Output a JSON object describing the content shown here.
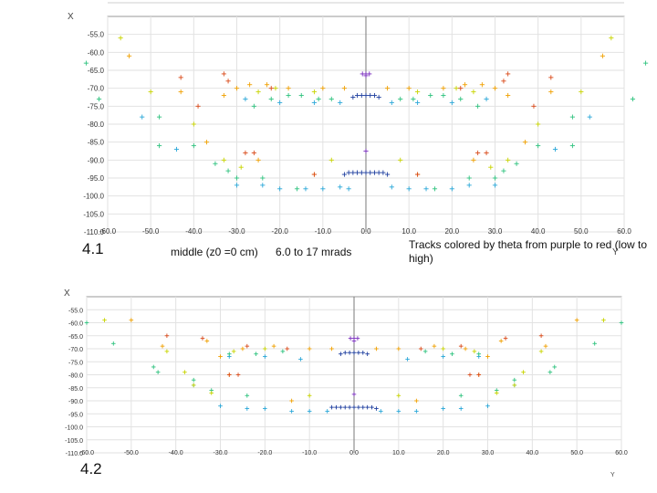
{
  "annotations": {
    "label_4_1": "4.1",
    "label_4_2": "4.2",
    "condition": "middle (z0 =0 cm)",
    "range": "6.0 to 17 mrads",
    "color_note": "Tracks colored by theta from purple to red (low to high)"
  },
  "chart_data": [
    {
      "type": "scatter",
      "title": "",
      "xlabel": "Y",
      "ylabel": "X",
      "xlim": [
        -60,
        60
      ],
      "ylim": [
        -110,
        -50
      ],
      "x_ticks": [
        "-60.0",
        "-50.0",
        "-40.0",
        "-30.0",
        "-20.0",
        "-10.0",
        "0.0",
        "10.0",
        "20.0",
        "30.0",
        "40.0",
        "50.0",
        "60.0"
      ],
      "y_ticks": [
        "-55.0",
        "-60.0",
        "-65.0",
        "-70.0",
        "-75.0",
        "-80.0",
        "-85.0",
        "-90.0",
        "-95.0",
        "-100.0",
        "-105.0",
        "-110.0"
      ],
      "grid": true,
      "colors": [
        "#7b2fbf",
        "#1f3f9f",
        "#2aa7d8",
        "#2ec27e",
        "#c8d400",
        "#f0a000",
        "#d94a1a"
      ],
      "series": [
        {
          "color": "#7b2fbf",
          "marker": "+",
          "x": [
            -0.8,
            0,
            0.8,
            0,
            0
          ],
          "y": [
            -66,
            -66,
            -66,
            -66.5,
            -87.5
          ]
        },
        {
          "color": "#1f3f9f",
          "marker": "+",
          "x": [
            -3,
            -2,
            -1,
            0,
            1,
            2,
            3,
            -5,
            -4,
            -3,
            -2,
            -1,
            0,
            1,
            2,
            3,
            4,
            5
          ],
          "y": [
            -72.5,
            -72,
            -72,
            -72,
            -72,
            -72,
            -72.5,
            -94,
            -93.5,
            -93.5,
            -93.5,
            -93.5,
            -93.5,
            -93.5,
            -93.5,
            -93.5,
            -93.5,
            -94
          ]
        },
        {
          "color": "#2aa7d8",
          "marker": "+",
          "x": [
            -52,
            -30,
            -24,
            -20,
            -14,
            -10,
            -6,
            -4,
            6,
            10,
            14,
            20,
            24,
            30,
            52,
            -28,
            -20,
            -12,
            -6,
            6,
            12,
            20,
            28,
            -44,
            44
          ],
          "y": [
            -78,
            -97,
            -97,
            -98,
            -98,
            -98,
            -97.5,
            -98,
            -97.5,
            -98,
            -98,
            -98,
            -97,
            -97,
            -78,
            -73,
            -74,
            -74,
            -74,
            -74,
            -74,
            -74,
            -73,
            -87,
            -87
          ]
        },
        {
          "color": "#2ec27e",
          "marker": "+",
          "x": [
            -65,
            -48,
            -40,
            -32,
            -26,
            -22,
            -18,
            -15,
            -11,
            -8,
            8,
            11,
            15,
            18,
            22,
            26,
            32,
            40,
            48,
            65,
            -48,
            -35,
            -30,
            -24,
            -16,
            16,
            24,
            30,
            35,
            48,
            -62,
            62
          ],
          "y": [
            -63,
            -78,
            -86,
            -93,
            -75,
            -73,
            -72,
            -72,
            -73,
            -73,
            -73,
            -73,
            -72,
            -72,
            -73,
            -75,
            -93,
            -86,
            -78,
            -63,
            -86,
            -91,
            -95,
            -95,
            -98,
            -98,
            -95,
            -95,
            -91,
            -86,
            -73,
            -73
          ]
        },
        {
          "color": "#c8d400",
          "marker": "+",
          "x": [
            -57,
            -50,
            -33,
            -29,
            -25,
            -21,
            -12,
            12,
            21,
            25,
            29,
            33,
            50,
            57,
            -40,
            40,
            -8,
            8
          ],
          "y": [
            -56,
            -71,
            -90,
            -92,
            -71,
            -70,
            -71,
            -71,
            -70,
            -71,
            -92,
            -90,
            -71,
            -56,
            -80,
            -80,
            -90,
            -90
          ]
        },
        {
          "color": "#f0a000",
          "marker": "+",
          "x": [
            -55,
            -43,
            -37,
            -33,
            -30,
            -27,
            -23,
            -18,
            -10,
            -5,
            5,
            10,
            18,
            23,
            27,
            30,
            33,
            37,
            43,
            55,
            -25,
            25,
            -12,
            12
          ],
          "y": [
            -61,
            -71,
            -85,
            -72,
            -70,
            -69,
            -69,
            -70,
            -70,
            -70,
            -70,
            -70,
            -70,
            -69,
            -69,
            -70,
            -72,
            -85,
            -71,
            -61,
            -90,
            -90,
            -94,
            -94
          ]
        },
        {
          "color": "#d94a1a",
          "marker": "+",
          "x": [
            -43,
            -39,
            -33,
            -32,
            -28,
            -22,
            22,
            28,
            32,
            33,
            39,
            43,
            -26,
            26,
            -12,
            12
          ],
          "y": [
            -67,
            -75,
            -66,
            -68,
            -88,
            -70,
            -70,
            -88,
            -68,
            -66,
            -75,
            -67,
            -88,
            -88,
            -94,
            -94
          ]
        }
      ]
    },
    {
      "type": "scatter",
      "title": "",
      "xlabel": "Y",
      "ylabel": "X",
      "xlim": [
        -60,
        60
      ],
      "ylim": [
        -110,
        -50
      ],
      "x_ticks": [
        "-60.0",
        "-50.0",
        "-40.0",
        "-30.0",
        "-20.0",
        "-10.0",
        "0.0",
        "10.0",
        "20.0",
        "30.0",
        "40.0",
        "50.0",
        "60.0"
      ],
      "y_ticks": [
        "-55.0",
        "-60.0",
        "-65.0",
        "-70.0",
        "-75.0",
        "-80.0",
        "-85.0",
        "-90.0",
        "-95.0",
        "-100.0",
        "-105.0",
        "-110.0"
      ],
      "grid": true,
      "colors": [
        "#7b2fbf",
        "#1f3f9f",
        "#2aa7d8",
        "#2ec27e",
        "#c8d400",
        "#f0a000",
        "#d94a1a"
      ],
      "series": [
        {
          "color": "#7b2fbf",
          "marker": "+",
          "x": [
            -0.8,
            0,
            0.8,
            0,
            0
          ],
          "y": [
            -66,
            -66,
            -66,
            -67,
            -87.5
          ]
        },
        {
          "color": "#1f3f9f",
          "marker": "+",
          "x": [
            -3,
            -2,
            -1,
            0,
            1,
            2,
            3,
            -5,
            -4,
            -3,
            -2,
            -1,
            0,
            1,
            2,
            3,
            4,
            5
          ],
          "y": [
            -72,
            -71.5,
            -71.5,
            -71.5,
            -71.5,
            -71.5,
            -72,
            -92.5,
            -92.5,
            -92.5,
            -92.5,
            -92.5,
            -92.5,
            -92.5,
            -92.5,
            -92.5,
            -92.5,
            -93
          ]
        },
        {
          "color": "#2aa7d8",
          "marker": "+",
          "x": [
            -30,
            -24,
            -20,
            -14,
            -10,
            -6,
            6,
            10,
            14,
            20,
            24,
            30,
            -28,
            -20,
            -12,
            12,
            20,
            28,
            -36,
            36
          ],
          "y": [
            -92,
            -93,
            -93,
            -94,
            -94,
            -94,
            -94,
            -94,
            -94,
            -93,
            -93,
            -92,
            -73,
            -73,
            -74,
            -74,
            -73,
            -73,
            -84,
            -84
          ]
        },
        {
          "color": "#2ec27e",
          "marker": "+",
          "x": [
            -60,
            -45,
            -36,
            -28,
            -22,
            -16,
            16,
            22,
            28,
            36,
            45,
            60,
            -44,
            -32,
            -24,
            24,
            32,
            44,
            -54,
            54
          ],
          "y": [
            -60,
            -77,
            -82,
            -72,
            -72,
            -71,
            -71,
            -72,
            -72,
            -82,
            -77,
            -60,
            -79,
            -86,
            -88,
            -88,
            -86,
            -79,
            -68,
            -68
          ]
        },
        {
          "color": "#c8d400",
          "marker": "+",
          "x": [
            -56,
            -42,
            -38,
            -32,
            -27,
            -20,
            20,
            27,
            32,
            38,
            42,
            56,
            -36,
            36,
            -10,
            10
          ],
          "y": [
            -59,
            -71,
            -79,
            -87,
            -71,
            -70,
            -70,
            -71,
            -87,
            -79,
            -71,
            -59,
            -84,
            -84,
            -88,
            -88
          ]
        },
        {
          "color": "#f0a000",
          "marker": "+",
          "x": [
            -50,
            -43,
            -33,
            -30,
            -25,
            -18,
            -10,
            -5,
            5,
            10,
            18,
            25,
            30,
            33,
            43,
            50,
            -28,
            28,
            -14,
            14
          ],
          "y": [
            -59,
            -69,
            -67,
            -73,
            -70,
            -69,
            -70,
            -70,
            -70,
            -70,
            -69,
            -70,
            -73,
            -67,
            -69,
            -59,
            -80,
            -80,
            -90,
            -90
          ]
        },
        {
          "color": "#d94a1a",
          "marker": "+",
          "x": [
            -42,
            -34,
            -28,
            -24,
            -15,
            15,
            24,
            28,
            34,
            42,
            -26,
            26
          ],
          "y": [
            -65,
            -66,
            -80,
            -69,
            -70,
            -70,
            -69,
            -80,
            -66,
            -65,
            -80,
            -80
          ]
        }
      ]
    }
  ]
}
